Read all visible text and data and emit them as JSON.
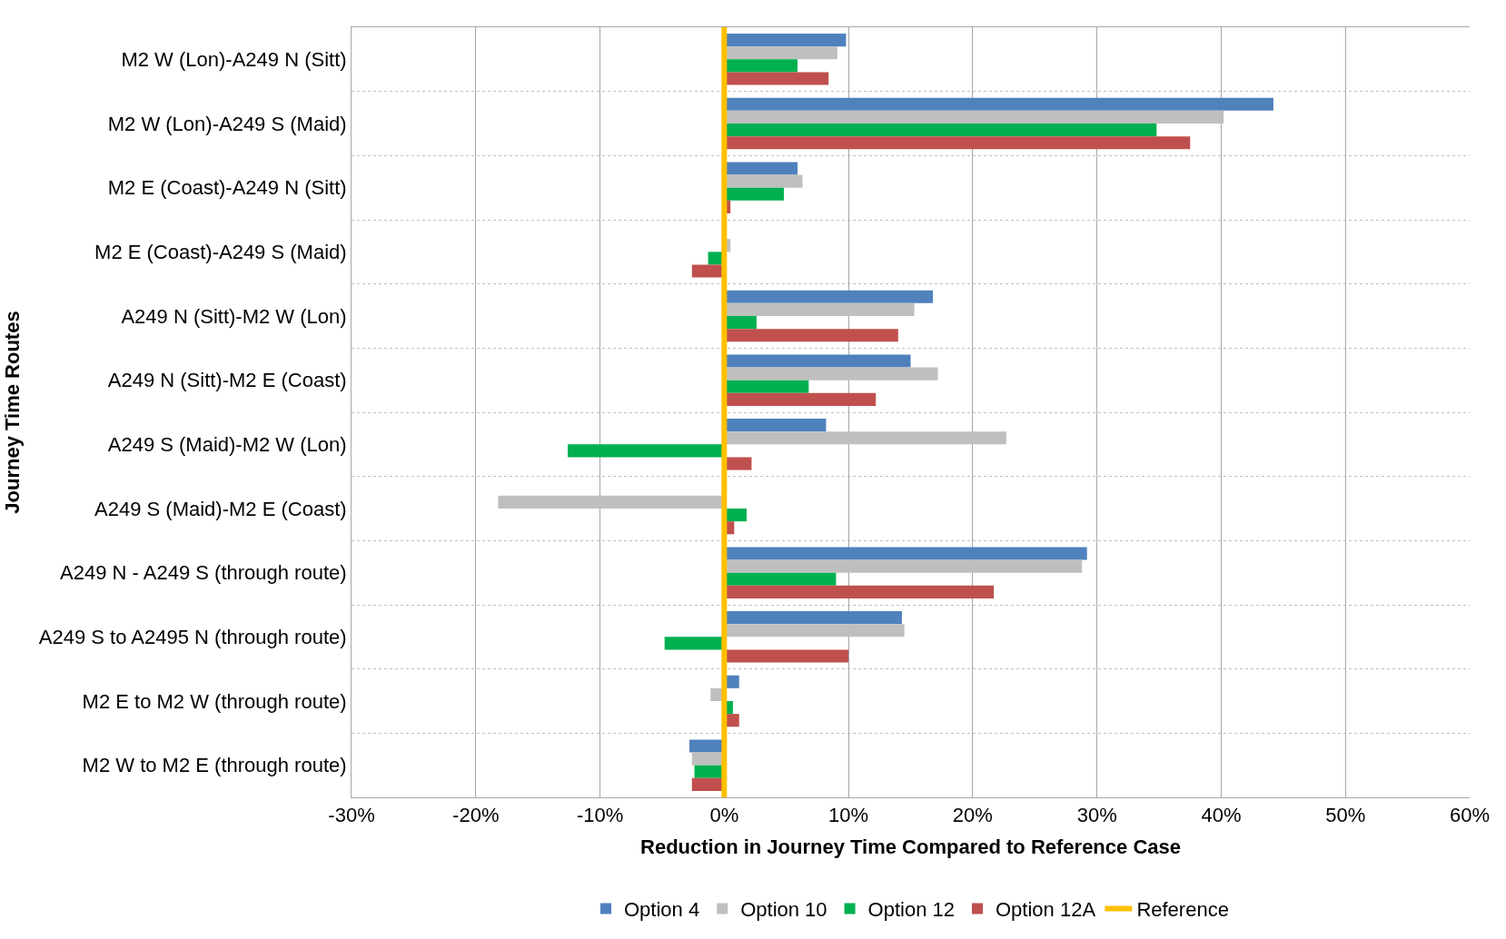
{
  "chart_data": {
    "type": "bar",
    "orientation": "horizontal",
    "xlabel": "Reduction in Journey Time Compared to Reference Case",
    "ylabel": "Journey Time Routes",
    "categories": [
      "M2 W (Lon)-A249 N (Sitt)",
      "M2 W (Lon)-A249 S (Maid)",
      "M2 E (Coast)-A249 N (Sitt)",
      "M2 E (Coast)-A249 S (Maid)",
      "A249 N (Sitt)-M2 W (Lon)",
      "A249 N (Sitt)-M2 E (Coast)",
      "A249 S (Maid)-M2 W (Lon)",
      "A249 S (Maid)-M2 E (Coast)",
      "A249 N - A249 S (through route)",
      "A249 S to A2495 N (through route)",
      "M2 E to M2 W (through route)",
      "M2 W to M2 E (through route)"
    ],
    "series": [
      {
        "name": "Option 4",
        "color": "#4f81bd",
        "values": [
          9.8,
          44.2,
          5.9,
          0,
          16.8,
          15.0,
          8.2,
          0,
          29.2,
          14.3,
          1.2,
          -2.8
        ]
      },
      {
        "name": "Option 10",
        "color": "#bfbfbf",
        "values": [
          9.1,
          40.2,
          6.3,
          0.5,
          15.3,
          17.2,
          22.7,
          -18.2,
          28.8,
          14.5,
          -1.1,
          -2.6
        ]
      },
      {
        "name": "Option 12",
        "color": "#00b050",
        "values": [
          5.9,
          34.8,
          4.8,
          -1.3,
          2.6,
          6.8,
          -12.6,
          1.8,
          9.0,
          -4.8,
          0.7,
          -2.4
        ]
      },
      {
        "name": "Option 12A",
        "color": "#c0504d",
        "values": [
          8.4,
          37.5,
          0.5,
          -2.6,
          14.0,
          12.2,
          2.2,
          0.8,
          21.7,
          10.0,
          1.2,
          -2.6
        ]
      }
    ],
    "ref_lines": [
      {
        "axis": "x",
        "value": 0,
        "label": "Reference",
        "color": "#ffc000"
      }
    ],
    "xlim": [
      -30,
      60
    ],
    "xticks": [
      {
        "value": -30,
        "label": "-30%"
      },
      {
        "value": -20,
        "label": "-20%"
      },
      {
        "value": -10,
        "label": "-10%"
      },
      {
        "value": 0,
        "label": "0%"
      },
      {
        "value": 10,
        "label": "10%"
      },
      {
        "value": 20,
        "label": "20%"
      },
      {
        "value": 30,
        "label": "30%"
      },
      {
        "value": 40,
        "label": "40%"
      },
      {
        "value": 50,
        "label": "50%"
      },
      {
        "value": 60,
        "label": "60%"
      }
    ],
    "grid": true,
    "legend": "bottom"
  }
}
